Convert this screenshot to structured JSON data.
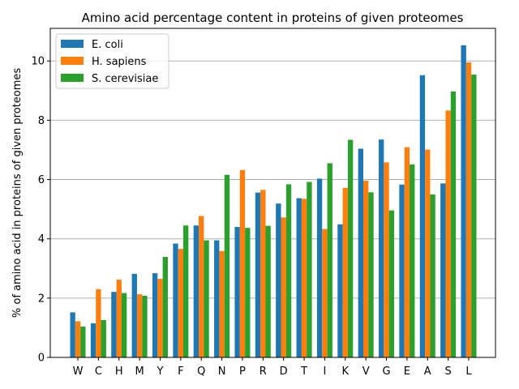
{
  "chart_data": {
    "type": "bar",
    "title": "Amino acid percentage content in proteins of given proteomes",
    "xlabel": "",
    "ylabel": "% of amino acid in proteins of given proteomes",
    "ylim": [
      0,
      11.1
    ],
    "yticks": [
      "0",
      "2",
      "4",
      "6",
      "8",
      "10"
    ],
    "ytick_values": [
      0,
      2,
      4,
      6,
      8,
      10
    ],
    "grid": "horizontal",
    "legend_position": "top-left",
    "categories": [
      "W",
      "C",
      "H",
      "M",
      "Y",
      "F",
      "Q",
      "N",
      "P",
      "R",
      "D",
      "T",
      "I",
      "K",
      "V",
      "G",
      "E",
      "A",
      "S",
      "L"
    ],
    "series": [
      {
        "name": "E. coli",
        "color": "#1f77b4",
        "values": [
          1.52,
          1.15,
          2.21,
          2.82,
          2.84,
          3.84,
          4.45,
          3.95,
          4.4,
          5.56,
          5.19,
          5.37,
          6.03,
          4.49,
          7.04,
          7.35,
          5.83,
          9.52,
          5.87,
          10.53
        ]
      },
      {
        "name": "H. sapiens",
        "color": "#ff7f0e",
        "values": [
          1.22,
          2.3,
          2.62,
          2.13,
          2.65,
          3.66,
          4.77,
          3.59,
          6.32,
          5.65,
          4.72,
          5.35,
          4.33,
          5.72,
          5.96,
          6.58,
          7.09,
          7.01,
          8.33,
          9.95
        ]
      },
      {
        "name": "S. cerevisiae",
        "color": "#2ca02c",
        "values": [
          1.04,
          1.26,
          2.17,
          2.08,
          3.39,
          4.45,
          3.95,
          6.16,
          4.37,
          4.44,
          5.84,
          5.92,
          6.55,
          7.34,
          5.57,
          4.96,
          6.51,
          5.5,
          8.97,
          9.54
        ]
      }
    ]
  }
}
